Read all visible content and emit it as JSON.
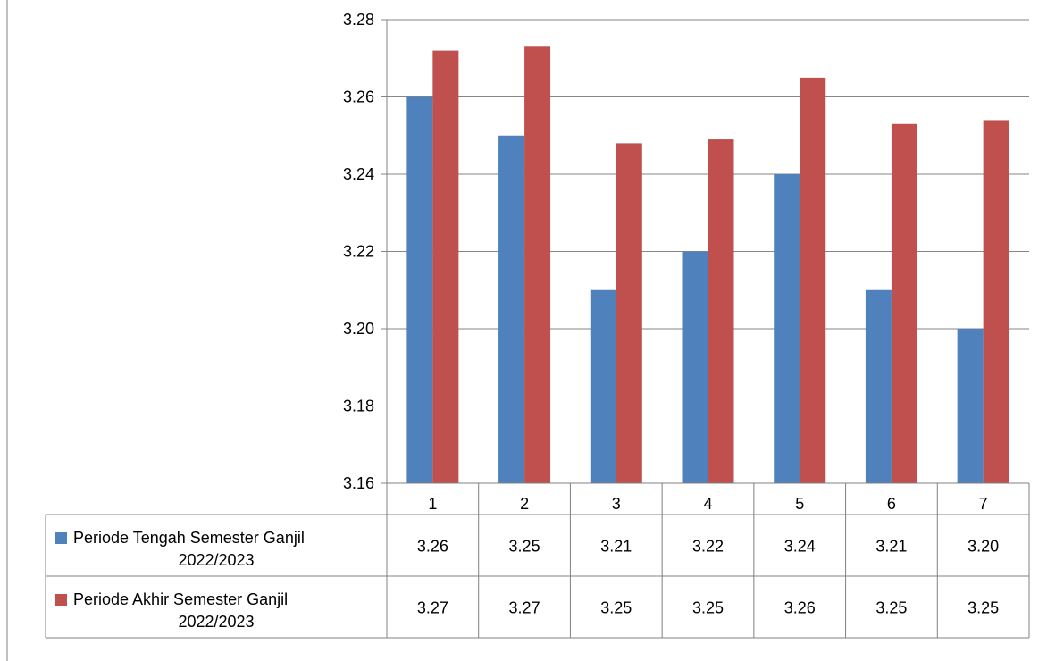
{
  "chart_data": {
    "type": "bar",
    "categories": [
      "1",
      "2",
      "3",
      "4",
      "5",
      "6",
      "7"
    ],
    "series": [
      {
        "name": "Periode Tengah Semester Ganjil 2022/2023",
        "name_lines": [
          "Periode Tengah Semester Ganjil",
          "2022/2023"
        ],
        "color": "#4f81bd",
        "values": [
          3.26,
          3.25,
          3.21,
          3.22,
          3.24,
          3.21,
          3.2
        ],
        "table_labels": [
          "3.26",
          "3.25",
          "3.21",
          "3.22",
          "3.24",
          "3.21",
          "3.20"
        ]
      },
      {
        "name": "Periode Akhir Semester Ganjil 2022/2023",
        "name_lines": [
          "Periode Akhir Semester Ganjil",
          "2022/2023"
        ],
        "color": "#c0504d",
        "values": [
          3.272,
          3.273,
          3.248,
          3.249,
          3.265,
          3.253,
          3.254
        ],
        "table_labels": [
          "3.27",
          "3.27",
          "3.25",
          "3.25",
          "3.26",
          "3.25",
          "3.25"
        ]
      }
    ],
    "ylim": [
      3.16,
      3.28
    ],
    "yticks": [
      "3.16",
      "3.18",
      "3.20",
      "3.22",
      "3.24",
      "3.26",
      "3.28"
    ],
    "grid": true,
    "legend": "data-table"
  }
}
